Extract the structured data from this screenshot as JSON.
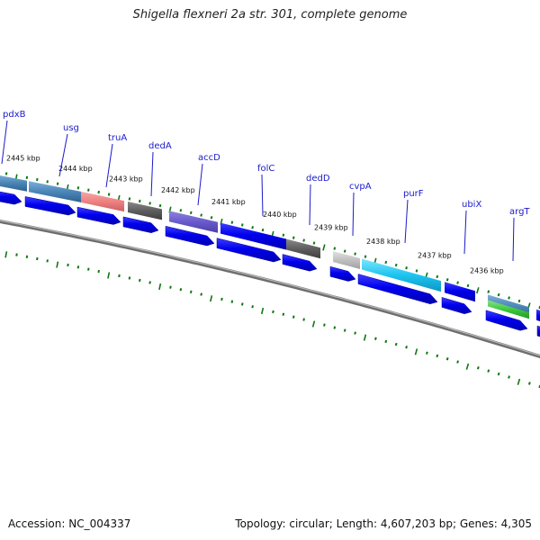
{
  "title": "Shigella flexneri 2a str. 301, complete genome",
  "footer": {
    "accession": "Accession: NC_004337",
    "topology": "Topology: circular; Length: 4,607,203 bp; Genes: 4,305"
  },
  "ticks": [
    "2445 kbp",
    "2444 kbp",
    "2443 kbp",
    "2442 kbp",
    "2441 kbp",
    "2440 kbp",
    "2439 kbp",
    "2438 kbp",
    "2437 kbp",
    "2436 kbp"
  ],
  "genes": [
    "pdxB",
    "usg",
    "truA",
    "dedA",
    "accD",
    "folC",
    "dedD",
    "cvpA",
    "purF",
    "ubiX",
    "argT"
  ],
  "colors": {
    "cds_blue": "#0000ee",
    "gene_label": "#1a1acc",
    "tick_green": "#117711",
    "backbone": "#777777"
  }
}
